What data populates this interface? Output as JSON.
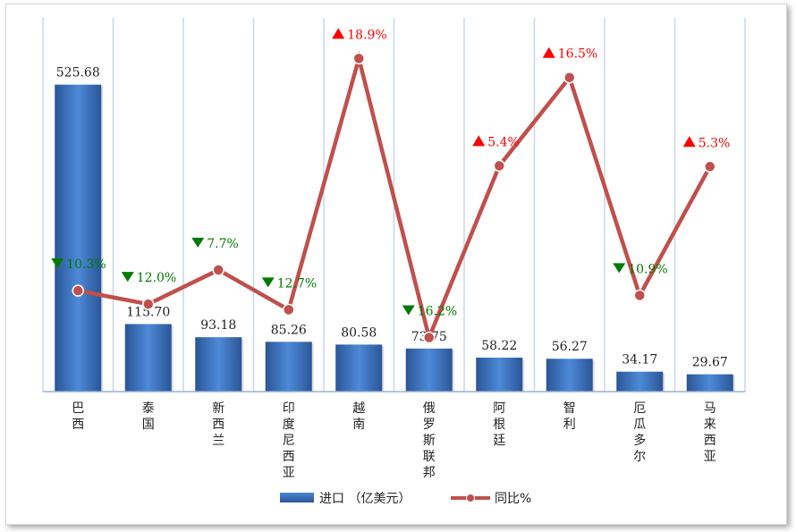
{
  "chart_data": {
    "type": "bar+line",
    "categories": [
      "巴西",
      "泰国",
      "新西兰",
      "印度尼西亚",
      "越南",
      "俄罗斯联邦",
      "阿根廷",
      "智利",
      "厄瓜多尔",
      "马来西亚"
    ],
    "series": [
      {
        "name": "进口（亿美元）",
        "type": "bar",
        "values": [
          525.68,
          115.7,
          93.18,
          85.26,
          80.58,
          73.75,
          58.22,
          56.27,
          34.17,
          29.67
        ],
        "value_labels": [
          "525.68",
          "115.70",
          "93.18",
          "85.26",
          "80.58",
          "73.75",
          "58.22",
          "56.27",
          "34.17",
          "29.67"
        ],
        "color": "#3a6fbf"
      },
      {
        "name": "同比%",
        "type": "line",
        "values": [
          -10.3,
          -12.0,
          -7.7,
          -12.7,
          18.9,
          -16.2,
          5.4,
          16.5,
          -10.9,
          5.3
        ],
        "value_labels": [
          "10.3%",
          "12.0%",
          "7.7%",
          "12.7%",
          "18.9%",
          "16.2%",
          "5.4%",
          "16.5%",
          "10.9%",
          "5.3%"
        ],
        "color": "#c0504d"
      }
    ],
    "bar_ylim": [
      0,
      640
    ],
    "line_ylim": [
      -23,
      24
    ],
    "grid": "vertical",
    "legend_position": "bottom",
    "up_color": "#ff0000",
    "down_color": "#007a00"
  },
  "legend": {
    "bar_label": "进口 （亿美元）",
    "line_label": "同比%"
  }
}
